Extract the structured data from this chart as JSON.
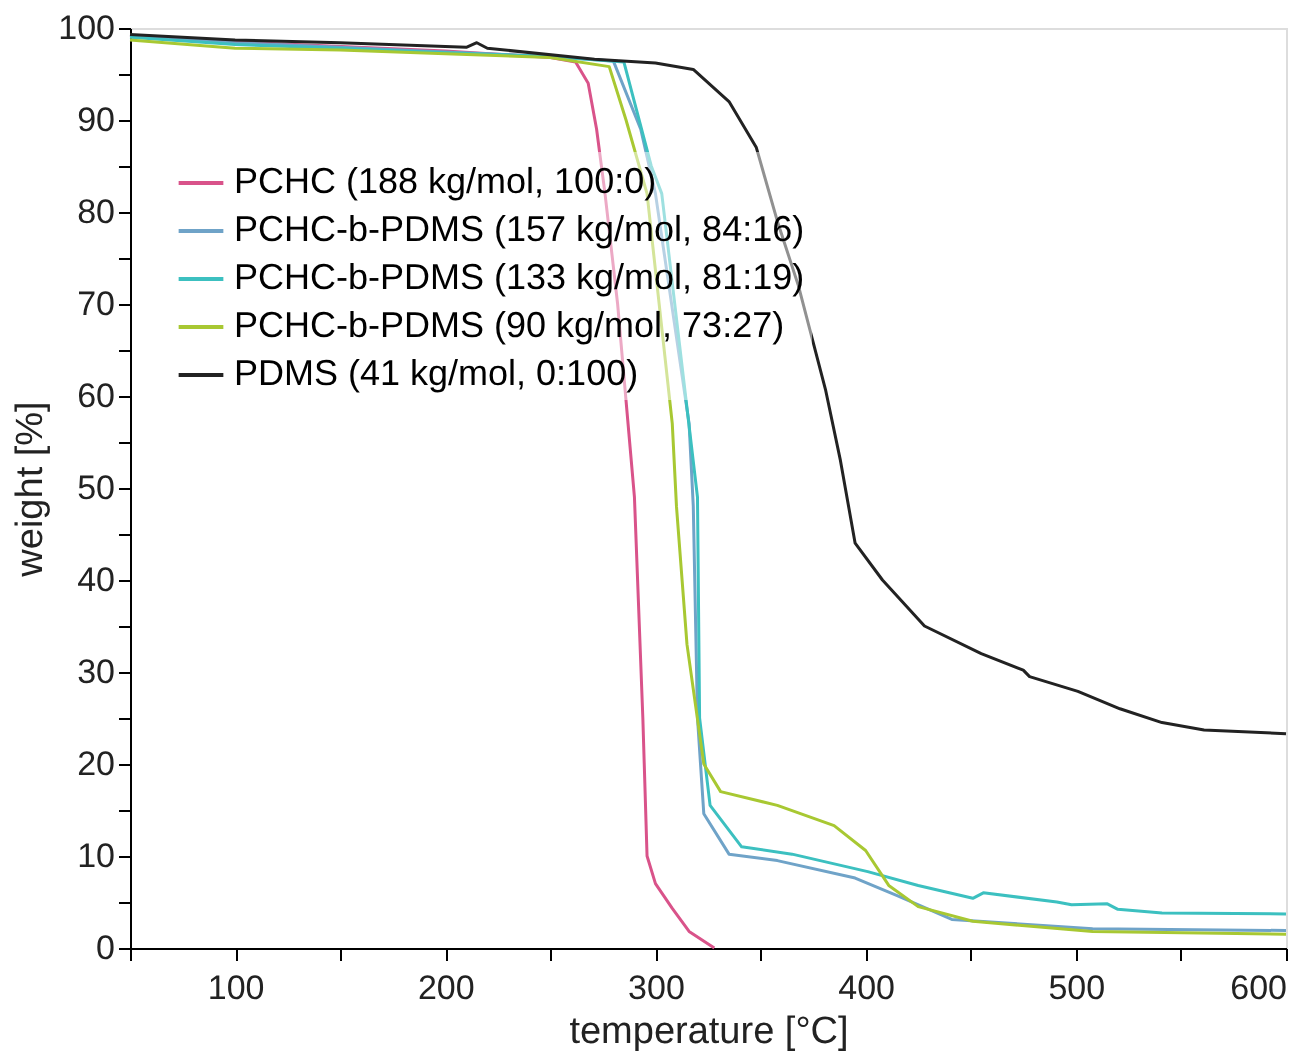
{
  "chart_data": {
    "type": "line",
    "xlabel": "temperature [°C]",
    "ylabel": "weight [%]",
    "xlim": [
      50,
      600
    ],
    "ylim": [
      0,
      100
    ],
    "xticks": [
      {
        "value": 50,
        "label": null
      },
      100,
      {
        "value": 150,
        "label": null
      },
      200,
      {
        "value": 250,
        "label": null
      },
      300,
      {
        "value": 350,
        "label": null
      },
      400,
      {
        "value": 450,
        "label": null
      },
      500,
      {
        "value": 550,
        "label": null
      },
      600
    ],
    "yticks": [
      0,
      {
        "value": 5,
        "label": null
      },
      10,
      {
        "value": 15,
        "label": null
      },
      20,
      {
        "value": 25,
        "label": null
      },
      30,
      {
        "value": 35,
        "label": null
      },
      40,
      {
        "value": 45,
        "label": null
      },
      50,
      {
        "value": 55,
        "label": null
      },
      60,
      {
        "value": 65,
        "label": null
      },
      70,
      {
        "value": 75,
        "label": null
      },
      80,
      {
        "value": 85,
        "label": null
      },
      90,
      {
        "value": 95,
        "label": null
      },
      100
    ],
    "grid": false,
    "legend": "top left",
    "marker": "none",
    "line_style": "solid",
    "series": [
      {
        "name": "PCHC (188 kg/mol, 100:0)",
        "color": "#d9538a",
        "x": [
          50,
          100,
          200,
          250,
          262,
          268,
          272,
          276,
          282,
          290,
          294,
          296,
          300,
          308,
          316,
          328
        ],
        "values": [
          99.2,
          98.5,
          97.5,
          96.8,
          96.3,
          94,
          89,
          82,
          70,
          49,
          25,
          10,
          7,
          4.3,
          1.8,
          0
        ]
      },
      {
        "name": "PCHC-b-PDMS (157 kg/mol, 84:16)",
        "color": "#6fa3c8",
        "x": [
          50,
          100,
          150,
          200,
          250,
          280,
          293,
          300,
          316,
          318,
          320,
          323,
          335,
          358,
          395,
          415,
          441,
          508,
          600
        ],
        "values": [
          99.2,
          98.4,
          97.9,
          97.4,
          96.9,
          96.4,
          89,
          82,
          57,
          48,
          25,
          14.6,
          10.2,
          9.5,
          7.6,
          5.7,
          3.1,
          2.1,
          1.9
        ]
      },
      {
        "name": "PCHC-b-PDMS (133 kg/mol, 81:19)",
        "color": "#3cc0c0",
        "x": [
          50,
          100,
          150,
          200,
          250,
          285,
          298,
          303,
          320,
          321,
          326,
          341,
          365,
          401,
          425,
          451,
          456,
          491,
          498,
          515,
          520,
          541,
          600
        ],
        "values": [
          99.0,
          98.2,
          97.8,
          97.3,
          96.9,
          96.3,
          85,
          82,
          49,
          25,
          15.5,
          11,
          10.2,
          8.3,
          6.8,
          5.4,
          6,
          5.0,
          4.7,
          4.8,
          4.2,
          3.8,
          3.7
        ]
      },
      {
        "name": "PCHC-b-PDMS (90 kg/mol, 73:27)",
        "color": "#a8c832",
        "x": [
          50,
          100,
          150,
          200,
          250,
          278,
          286,
          296,
          308,
          310,
          315,
          323,
          331,
          358,
          385,
          400,
          411,
          425,
          451,
          508,
          600
        ],
        "values": [
          98.7,
          97.8,
          97.6,
          97.2,
          96.8,
          95.8,
          90,
          82,
          57,
          48,
          33,
          20,
          17,
          15.5,
          13.3,
          10.6,
          6.8,
          4.5,
          2.9,
          1.8,
          1.5
        ]
      },
      {
        "name": "PDMS (41 kg/mol, 0:100)",
        "color": "#222222",
        "x": [
          50,
          100,
          150,
          200,
          210,
          215,
          220,
          271,
          300,
          318,
          335,
          348,
          358,
          368,
          381,
          388,
          395,
          408,
          428,
          455,
          475,
          478,
          501,
          521,
          541,
          561,
          600
        ],
        "values": [
          99.3,
          98.7,
          98.4,
          98.0,
          97.9,
          98.4,
          97.8,
          96.6,
          96.2,
          95.5,
          92,
          87,
          79,
          72,
          60.6,
          53,
          44,
          40,
          35,
          32,
          30.2,
          29.5,
          27.9,
          26,
          24.5,
          23.7,
          23.3
        ]
      }
    ]
  }
}
